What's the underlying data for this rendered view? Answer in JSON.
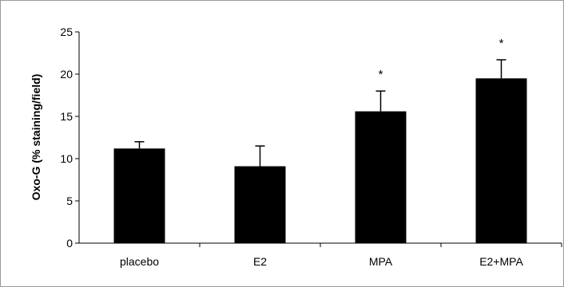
{
  "chart_data": {
    "type": "bar",
    "title": "",
    "xlabel": "",
    "ylabel": "Oxo-G (% staining/field)",
    "ylim": [
      0,
      25
    ],
    "yticks": [
      0,
      5,
      10,
      15,
      20,
      25
    ],
    "categories": [
      "placebo",
      "E2",
      "MPA",
      "E2+MPA"
    ],
    "values": [
      11.2,
      9.1,
      15.6,
      19.5
    ],
    "error": [
      0.8,
      2.4,
      2.4,
      2.2
    ],
    "annotations": [
      "",
      "",
      "*",
      "*"
    ],
    "grid": false,
    "legend": "none",
    "bar_color": "#000000"
  }
}
